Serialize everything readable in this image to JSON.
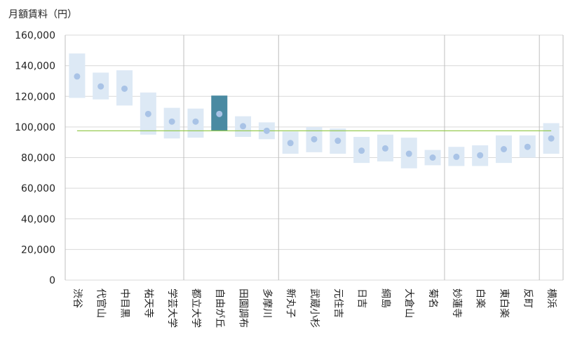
{
  "chart_data": {
    "type": "range-bar-with-point",
    "title": "",
    "ylabel": "月額賃料（円）",
    "xlabel": "",
    "ylim": [
      0,
      160000
    ],
    "yticks": [
      0,
      20000,
      40000,
      60000,
      80000,
      100000,
      120000,
      140000,
      160000
    ],
    "ytick_labels": [
      "0",
      "20,000",
      "40,000",
      "60,000",
      "80,000",
      "100,000",
      "120,000",
      "140,000",
      "160,000"
    ],
    "grid": true,
    "reference_line": 97500,
    "highlighted_category": "自由が丘",
    "categories": [
      "渋谷",
      "代官山",
      "中目黒",
      "祐天寺",
      "学芸大学",
      "都立大学",
      "自由が丘",
      "田園調布",
      "多摩川",
      "新丸子",
      "武蔵小杉",
      "元住吉",
      "日吉",
      "綱島",
      "大倉山",
      "菊名",
      "妙蓮寺",
      "白楽",
      "東白楽",
      "反町",
      "横浜"
    ],
    "vertical_dividers_after": [
      "学芸大学",
      "多摩川",
      "菊名",
      "反町"
    ],
    "low": [
      119000,
      118000,
      114000,
      95000,
      92500,
      93000,
      97500,
      93500,
      92000,
      82500,
      83500,
      82500,
      76500,
      77500,
      73000,
      75000,
      74500,
      74500,
      76500,
      80000,
      82500
    ],
    "high": [
      148000,
      135500,
      137000,
      122500,
      112500,
      112000,
      120500,
      107000,
      103000,
      97000,
      100000,
      99000,
      93500,
      95000,
      93000,
      85000,
      87000,
      88000,
      94500,
      94500,
      102500
    ],
    "point": [
      133000,
      126500,
      125000,
      108500,
      103500,
      103500,
      108500,
      100500,
      97500,
      89500,
      92000,
      91000,
      84500,
      86000,
      82500,
      80000,
      80500,
      81500,
      85500,
      87000,
      92500
    ]
  },
  "colors": {
    "range": "#dde9f5",
    "range_highlight": "#4a8aa2",
    "point": "#a9c3e6",
    "point_highlight": "#a9c3e6",
    "reference": "#8cc63f",
    "grid": "#d9d9d9",
    "divider": "#bfbfbf",
    "axis": "#bfbfbf",
    "text": "#222222"
  }
}
